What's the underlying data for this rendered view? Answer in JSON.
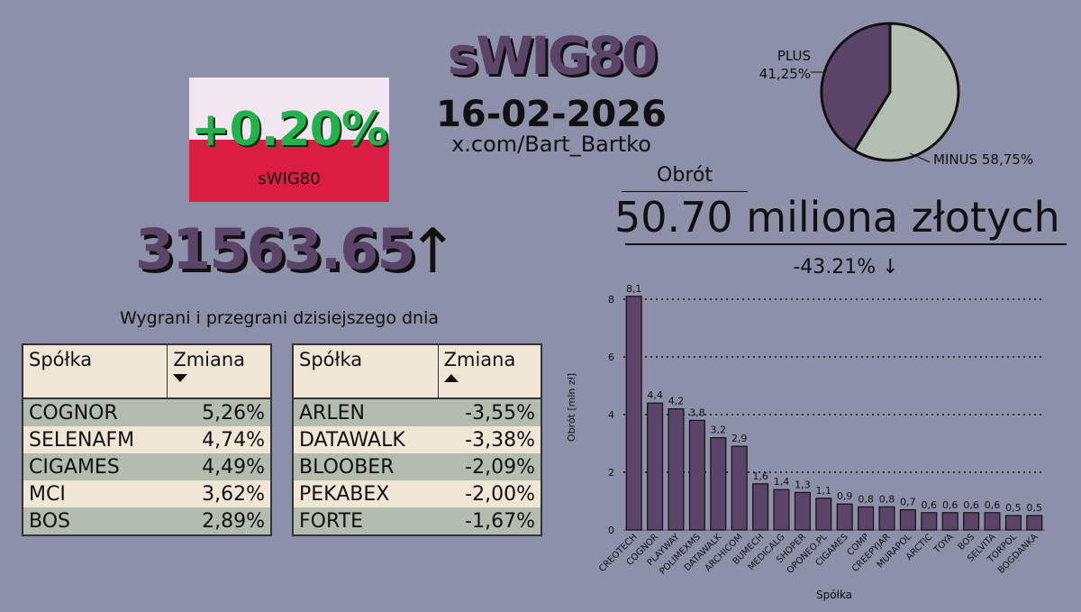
{
  "index_name": "sWIG80",
  "date": "16-02-2026",
  "handle": "x.com/Bart_Bartko",
  "change_pct": "+0.20%",
  "index_value": "31563.65",
  "index_arrow": "↑",
  "tables": {
    "heading": "Wygrani i przegrani dzisiejszego dnia",
    "gainers": {
      "col1": "Spółka",
      "col2": "Zmiana",
      "rows": [
        {
          "name": "COGNOR",
          "change": "5,26%"
        },
        {
          "name": "SELENAFM",
          "change": "4,74%"
        },
        {
          "name": "CIGAMES",
          "change": "4,49%"
        },
        {
          "name": "MCI",
          "change": "3,62%"
        },
        {
          "name": "BOS",
          "change": "2,89%"
        }
      ]
    },
    "losers": {
      "col1": "Spółka",
      "col2": "Zmiana",
      "rows": [
        {
          "name": "ARLEN",
          "change": "-3,55%"
        },
        {
          "name": "DATAWALK",
          "change": "-3,38%"
        },
        {
          "name": "BLOOBER",
          "change": "-2,09%"
        },
        {
          "name": "PEKABEX",
          "change": "-2,00%"
        },
        {
          "name": "FORTE",
          "change": "-1,67%"
        }
      ]
    }
  },
  "turnover": {
    "label": "Obrót",
    "value": "50.70 miliona złotych",
    "change": "-43.21% ↓"
  },
  "colors": {
    "background": "#8c90a8",
    "purple": "#5a4468",
    "green": "#22b14c",
    "flag_red": "#dc1d42",
    "pie_minus": "#b4bfb4"
  },
  "chart_data": [
    {
      "type": "pie",
      "slices": [
        {
          "label": "PLUS",
          "value": 41.25,
          "value_label": "41,25%",
          "color": "#5a4468"
        },
        {
          "label": "MINUS",
          "value": 58.75,
          "value_label": "58,75%",
          "color": "#b4bfb4"
        }
      ]
    },
    {
      "type": "bar",
      "xlabel": "Spółka",
      "ylabel": "Obrót [mln zł]",
      "ylim": [
        0,
        8.5
      ],
      "yticks": [
        0,
        2,
        4,
        6,
        8
      ],
      "grid": true,
      "categories": [
        "CREOTECH",
        "COGNOR",
        "PLAYWAY",
        "POLIMEXMS",
        "DATAWALK",
        "ARCHICOM",
        "BUMECH",
        "MEDICALG",
        "SHOPER",
        "OPONEO.PL",
        "CIGAMES",
        "COMP",
        "CREEPYJAR",
        "MURAPOL",
        "ARCTIC",
        "TOYA",
        "BOS",
        "SELVITA",
        "TORPOL",
        "BOGDANKA"
      ],
      "values": [
        8.1,
        4.4,
        4.2,
        3.8,
        3.2,
        2.9,
        1.6,
        1.4,
        1.3,
        1.1,
        0.9,
        0.8,
        0.8,
        0.7,
        0.6,
        0.6,
        0.6,
        0.6,
        0.5,
        0.5
      ],
      "value_labels": [
        "8,1",
        "4,4",
        "4,2",
        "3,8",
        "3,2",
        "2,9",
        "1,6",
        "1,4",
        "1,3",
        "1,1",
        "0,9",
        "0,8",
        "0,8",
        "0,7",
        "0,6",
        "0,6",
        "0,6",
        "0,6",
        "0,5",
        "0,5"
      ]
    }
  ]
}
